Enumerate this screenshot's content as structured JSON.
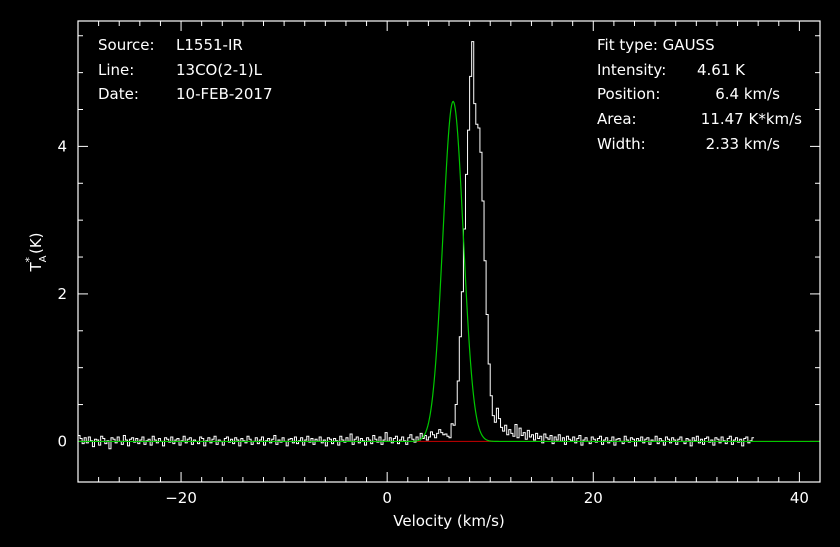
{
  "info_left": [
    {
      "label": "Source:",
      "value": "L1551-IR"
    },
    {
      "label": "Line:",
      "value": "13CO(2-1)L"
    },
    {
      "label": "Date:",
      "value": "10-FEB-2017"
    }
  ],
  "fit": {
    "title": "Fit type: GAUSS",
    "rows": [
      {
        "label": "Intensity:",
        "value": "4.61 K"
      },
      {
        "label": "Position:",
        "value": "6.4 km/s"
      },
      {
        "label": "Area:",
        "value": "11.47 K*km/s"
      },
      {
        "label": "Width:",
        "value": "2.33 km/s"
      }
    ]
  },
  "chart_data": {
    "type": "line",
    "xlabel": "Velocity (km/s)",
    "ylabel": "T*A (K)",
    "xlim": [
      -30,
      42
    ],
    "ylim": [
      -0.55,
      5.7
    ],
    "xticks": [
      -20,
      0,
      20,
      40
    ],
    "yticks": [
      0,
      2,
      4
    ],
    "grid": false,
    "colors": {
      "spectrum": "#ffffff",
      "fit": "#00c800",
      "baseline": "#c80000",
      "axes": "#ffffff"
    },
    "fit_model": {
      "type": "gaussian",
      "amplitude": 4.61,
      "center": 6.4,
      "fwhm": 2.33
    },
    "baseline": {
      "y": 0,
      "x": [
        -30,
        42
      ]
    },
    "spectrum": {
      "x_start": -30,
      "x_step": 0.2,
      "y": [
        0.08,
        0.04,
        -0.03,
        0.05,
        -0.02,
        0.06,
        0.01,
        -0.07,
        0.03,
        0.02,
        -0.05,
        0.07,
        0.04,
        -0.03,
        0.01,
        -0.1,
        0.05,
        0.03,
        -0.02,
        0.06,
        0.0,
        -0.04,
        0.08,
        0.02,
        -0.06,
        0.03,
        0.05,
        -0.01,
        0.04,
        -0.03,
        0.02,
        0.06,
        -0.04,
        0.01,
        0.03,
        -0.05,
        0.07,
        0.02,
        -0.02,
        0.04,
        0.0,
        -0.06,
        0.05,
        0.03,
        -0.01,
        0.06,
        -0.03,
        0.02,
        0.04,
        -0.05,
        0.01,
        0.07,
        -0.02,
        0.03,
        0.05,
        -0.04,
        0.02,
        0.0,
        -0.03,
        0.06,
        0.04,
        -0.06,
        0.01,
        0.05,
        -0.02,
        0.03,
        0.07,
        -0.04,
        0.02,
        0.0,
        -0.05,
        0.04,
        0.06,
        -0.01,
        0.03,
        -0.03,
        0.05,
        0.02,
        -0.06,
        0.04,
        0.01,
        -0.02,
        0.07,
        0.03,
        -0.04,
        0.0,
        0.05,
        -0.03,
        0.02,
        0.06,
        -0.05,
        0.01,
        0.04,
        -0.02,
        0.03,
        0.08,
        -0.04,
        0.02,
        -0.01,
        0.05,
        0.0,
        -0.06,
        0.03,
        0.04,
        -0.02,
        0.06,
        -0.03,
        0.01,
        0.05,
        -0.05,
        0.02,
        0.07,
        -0.01,
        0.04,
        -0.04,
        0.03,
        0.0,
        0.06,
        -0.02,
        0.02,
        -0.06,
        0.05,
        0.03,
        -0.03,
        0.04,
        0.01,
        -0.05,
        0.07,
        0.02,
        -0.01,
        0.05,
        0.0,
        0.1,
        -0.04,
        0.03,
        0.06,
        -0.02,
        0.04,
        0.01,
        -0.05,
        0.05,
        0.02,
        -0.03,
        0.08,
        0.03,
        -0.01,
        0.06,
        -0.04,
        0.02,
        0.12,
        0.0,
        0.05,
        -0.02,
        0.04,
        0.07,
        -0.03,
        0.02,
        0.06,
        0.01,
        -0.04,
        0.05,
        0.09,
        0.03,
        -0.01,
        0.06,
        0.02,
        0.11,
        0.04,
        0.08,
        0.02,
        0.06,
        0.13,
        0.09,
        0.05,
        0.11,
        0.16,
        0.12,
        0.09,
        0.1,
        0.07,
        0.05,
        0.24,
        0.22,
        0.5,
        0.82,
        1.42,
        2.03,
        2.88,
        3.62,
        4.22,
        4.95,
        5.42,
        4.58,
        4.3,
        4.25,
        3.92,
        3.26,
        2.45,
        1.72,
        1.05,
        0.62,
        0.35,
        0.26,
        0.45,
        0.31,
        0.19,
        0.14,
        0.22,
        0.09,
        0.16,
        0.11,
        0.07,
        0.23,
        0.05,
        0.18,
        0.08,
        0.12,
        0.03,
        0.15,
        0.06,
        0.09,
        0.02,
        0.11,
        0.04,
        0.07,
        -0.02,
        0.1,
        0.05,
        0.03,
        0.08,
        -0.03,
        0.06,
        0.02,
        0.09,
        0.0,
        0.05,
        -0.04,
        0.07,
        0.03,
        0.01,
        0.06,
        -0.02,
        0.04,
        0.08,
        -0.05,
        0.02,
        0.05,
        0.0,
        -0.03,
        0.06,
        0.03,
        -0.01,
        0.04,
        0.07,
        -0.04,
        0.02,
        0.05,
        -0.02,
        0.01,
        0.06,
        -0.05,
        0.03,
        0.04,
        0.0,
        -0.03,
        0.07,
        0.02,
        -0.01,
        0.05,
        0.03,
        -0.06,
        0.04,
        0.01,
        0.06,
        -0.02,
        0.03,
        0.05,
        -0.04,
        0.02,
        0.0,
        0.07,
        -0.03,
        0.04,
        0.01,
        -0.05,
        0.06,
        0.03,
        -0.02,
        0.05,
        0.02,
        -0.04,
        0.03,
        0.06,
        0.0,
        -0.03,
        0.04,
        0.02,
        -0.06,
        0.05,
        0.01,
        0.07,
        -0.02,
        0.03,
        -0.04,
        0.04,
        0.06,
        -0.01,
        0.02,
        -0.05,
        0.05,
        0.03,
        -0.02,
        0.06,
        0.01,
        -0.03,
        0.04,
        0.07,
        -0.04,
        0.02,
        0.05,
        -0.01,
        0.03,
        -0.06,
        0.04,
        0.06,
        -0.02,
        0.01,
        0.05
      ]
    }
  }
}
